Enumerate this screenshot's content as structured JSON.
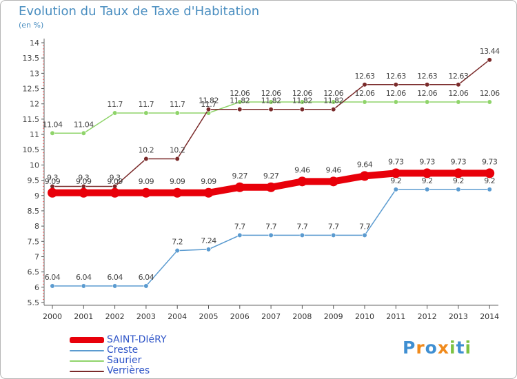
{
  "title": "Evolution du Taux de Taxe d'Habitation",
  "unit_label": "(en %)",
  "logo": {
    "text": "Proxiti",
    "letters": [
      "P",
      "r",
      "o",
      "x",
      "i",
      "t",
      "i"
    ],
    "colors": [
      "#3f8fd2",
      "#f08a1c",
      "#3f8fd2",
      "#f08a1c",
      "#7cc242",
      "#3f8fd2",
      "#7cc242"
    ]
  },
  "chart_data": {
    "type": "line",
    "title": "Evolution du Taux de Taxe d'Habitation",
    "ylabel": "(en %)",
    "xlabel": "",
    "x": [
      "2000",
      "2001",
      "2002",
      "2003",
      "2004",
      "2005",
      "2006",
      "2007",
      "2008",
      "2009",
      "2010",
      "2011",
      "2012",
      "2013",
      "2014"
    ],
    "ylim": [
      5.5,
      14
    ],
    "yticks": [
      "5.5",
      "6",
      "6.5",
      "7",
      "7.5",
      "8",
      "8.5",
      "9",
      "9.5",
      "10",
      "10.5",
      "11",
      "11.5",
      "12",
      "12.5",
      "13",
      "13.5",
      "14"
    ],
    "legend_position": "bottom-left",
    "series": [
      {
        "name": "SAINT-DIéRY",
        "color": "#e8000a",
        "emphasis": true,
        "values": [
          9.09,
          9.09,
          9.09,
          9.09,
          9.09,
          9.09,
          9.27,
          9.27,
          9.46,
          9.46,
          9.64,
          9.73,
          9.73,
          9.73,
          9.73
        ],
        "labels": [
          "9.09",
          "9.09",
          "9.09",
          "9.09",
          "9.09",
          "9.09",
          "9.27",
          "9.27",
          "9.46",
          "9.46",
          "9.64",
          "9.73",
          "9.73",
          "9.73",
          "9.73"
        ]
      },
      {
        "name": "Creste",
        "color": "#5b9bd0",
        "values": [
          6.04,
          6.04,
          6.04,
          6.04,
          7.2,
          7.24,
          7.7,
          7.7,
          7.7,
          7.7,
          7.7,
          9.2,
          9.2,
          9.2,
          9.2
        ],
        "labels": [
          "6.04",
          "6.04",
          "6.04",
          "6.04",
          "7.2",
          "7.24",
          "7.7",
          "7.7",
          "7.7",
          "7.7",
          "7.7",
          "9.2",
          "9.2",
          "9.2",
          "9.2"
        ]
      },
      {
        "name": "Saurier",
        "color": "#8fd46a",
        "values": [
          11.04,
          11.04,
          11.7,
          11.7,
          11.7,
          11.7,
          12.06,
          12.06,
          12.06,
          12.06,
          12.06,
          12.06,
          12.06,
          12.06,
          12.06
        ],
        "labels": [
          "11.04",
          "11.04",
          "11.7",
          "11.7",
          "11.7",
          "11.7",
          "12.06",
          "12.06",
          "12.06",
          "12.06",
          "12.06",
          "12.06",
          "12.06",
          "12.06",
          "12.06"
        ]
      },
      {
        "name": "Verrières",
        "color": "#7a2a2a",
        "values": [
          9.3,
          9.3,
          9.3,
          10.2,
          10.2,
          11.82,
          11.82,
          11.82,
          11.82,
          11.82,
          12.63,
          12.63,
          12.63,
          12.63,
          13.44
        ],
        "labels": [
          "9.3",
          "9.3",
          "9.3",
          "10.2",
          "10.2",
          "11.82",
          "11.82",
          "11.82",
          "11.82",
          "11.82",
          "12.63",
          "12.63",
          "12.63",
          "12.63",
          "13.44"
        ]
      }
    ]
  }
}
